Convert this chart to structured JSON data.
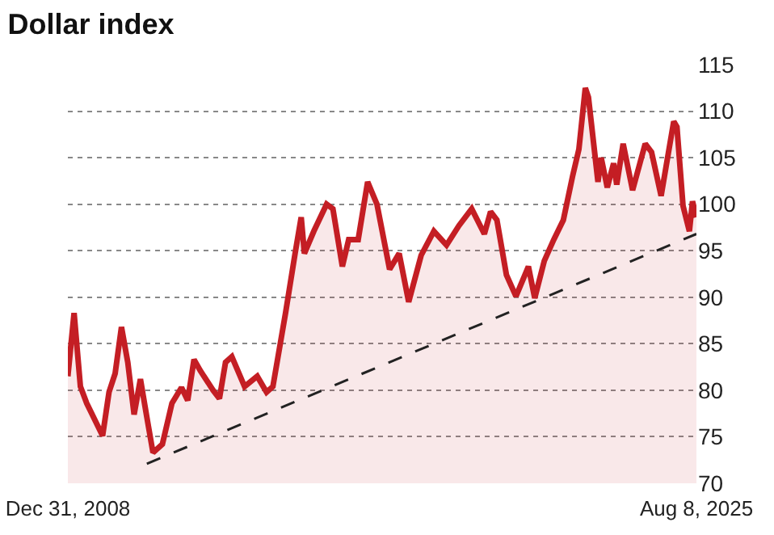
{
  "chart_data": {
    "type": "area",
    "title": "Dollar index",
    "xlim": [
      "2008-12-31",
      "2025-08-08"
    ],
    "xticks": [
      {
        "value": "2008-12-31",
        "label": "Dec 31, 2008"
      },
      {
        "value": "2025-08-08",
        "label": "Aug 8, 2025"
      }
    ],
    "ylim": [
      70,
      115
    ],
    "yticks": [
      70,
      75,
      80,
      85,
      90,
      95,
      100,
      105,
      110,
      115
    ],
    "grid": "y",
    "series": [
      {
        "color": "#c41e24",
        "x": [
          "2008-12-31",
          "2009-03",
          "2009-05",
          "2009-07",
          "2009-12",
          "2010-02",
          "2010-04",
          "2010-06",
          "2010-08",
          "2010-10",
          "2010-12",
          "2011-02",
          "2011-04",
          "2011-07",
          "2011-10",
          "2012-01",
          "2012-03",
          "2012-05",
          "2012-07",
          "2012-11",
          "2013-01",
          "2013-03",
          "2013-05",
          "2013-09",
          "2014-01",
          "2014-04",
          "2014-06",
          "2014-10",
          "2015-01",
          "2015-03",
          "2015-04",
          "2015-07",
          "2015-11",
          "2016-01",
          "2016-04",
          "2016-06",
          "2016-09",
          "2016-12",
          "2017-03",
          "2017-07",
          "2017-10",
          "2018-01",
          "2018-05",
          "2018-09",
          "2019-01",
          "2019-05",
          "2019-09",
          "2020-01",
          "2020-03",
          "2020-05",
          "2020-08",
          "2020-11",
          "2021-03",
          "2021-05",
          "2021-08",
          "2021-11",
          "2022-02",
          "2022-05",
          "2022-07",
          "2022-09",
          "2022-10",
          "2023-01",
          "2023-02",
          "2023-04",
          "2023-06",
          "2023-07",
          "2023-09",
          "2023-12",
          "2024-04",
          "2024-06",
          "2024-09",
          "2025-01",
          "2025-02",
          "2025-04",
          "2025-06",
          "2025-07",
          "2025-08-08"
        ],
        "values": [
          81.5,
          88.3,
          80.4,
          78.6,
          75.1,
          79.8,
          81.8,
          86.8,
          83.0,
          77.4,
          81.2,
          77.1,
          73.3,
          74.2,
          78.6,
          80.3,
          78.9,
          83.3,
          82.1,
          80.0,
          79.1,
          83.0,
          83.6,
          80.4,
          81.5,
          79.8,
          80.4,
          88.3,
          94.7,
          98.6,
          94.7,
          97.1,
          100.0,
          99.5,
          93.3,
          96.2,
          96.2,
          102.4,
          100.0,
          93.0,
          94.7,
          89.5,
          94.5,
          97.1,
          95.6,
          97.7,
          99.5,
          96.8,
          99.2,
          98.3,
          92.4,
          90.1,
          93.3,
          89.9,
          93.9,
          96.2,
          98.3,
          103.0,
          105.9,
          112.5,
          111.5,
          102.4,
          105.0,
          101.8,
          104.4,
          102.1,
          106.5,
          101.5,
          106.5,
          105.6,
          100.9,
          108.9,
          108.3,
          99.8,
          97.1,
          100.3,
          98.6
        ]
      },
      {
        "type": "line",
        "color": "#222222",
        "line_style": "dashed",
        "x": [
          "2011-02",
          "2025-08-08"
        ],
        "values": [
          72.1,
          96.8
        ]
      }
    ]
  }
}
